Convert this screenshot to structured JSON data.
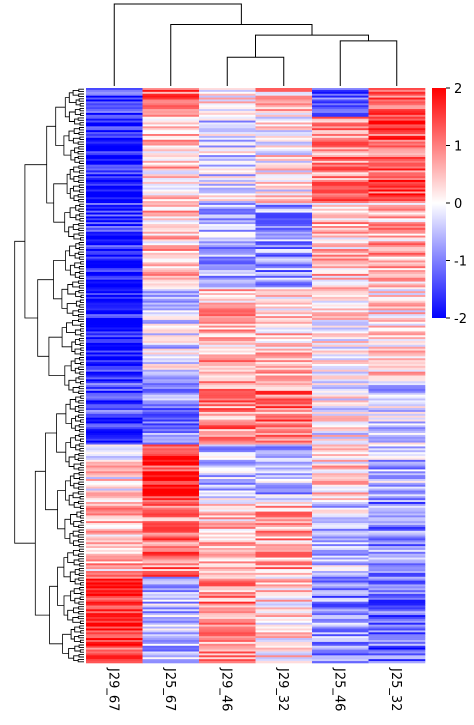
{
  "chart_data": {
    "type": "heatmap",
    "title": "",
    "columns": [
      "J29_67",
      "J25_67",
      "J29_46",
      "J29_32",
      "J25_46",
      "J25_32"
    ],
    "colorbar": {
      "min": -2,
      "max": 2,
      "ticks": [
        "2",
        "1",
        "0",
        "-1",
        "-2"
      ],
      "colors": {
        "low": "#0000ff",
        "mid": "#ffffff",
        "high": "#ff0000"
      }
    },
    "column_dendrogram": [
      {
        "merge": [
          "J29_46",
          "J29_32"
        ],
        "height": 0.35
      },
      {
        "merge": [
          "J25_46",
          "J25_32"
        ],
        "height": 0.55
      },
      {
        "merge": [
          "J29_46+J29_32",
          "J25_46+J25_32"
        ],
        "height": 0.62
      },
      {
        "merge": [
          "J25_67",
          "J29_46+J29_32+J25_46+J25_32"
        ],
        "height": 0.75
      },
      {
        "merge": [
          "J29_67",
          "rest"
        ],
        "height": 1.0
      }
    ],
    "row_profile_segments": [
      {
        "rows": "0-5%",
        "values": [
          -1.6,
          1.2,
          0.2,
          0.5,
          -1.2,
          1.4
        ]
      },
      {
        "rows": "5-20%",
        "values": [
          -1.8,
          0.4,
          -0.3,
          0.1,
          0.9,
          1.3
        ]
      },
      {
        "rows": "20-35%",
        "values": [
          -1.7,
          0.5,
          -0.6,
          -0.8,
          0.5,
          0.6
        ]
      },
      {
        "rows": "35-50%",
        "values": [
          -1.8,
          -0.3,
          0.6,
          0.4,
          0.1,
          0.3
        ]
      },
      {
        "rows": "50-62%",
        "values": [
          -1.5,
          -0.9,
          0.9,
          1.0,
          0.0,
          -0.4
        ]
      },
      {
        "rows": "62-72%",
        "values": [
          0.2,
          1.6,
          -0.4,
          -0.6,
          0.3,
          -0.6
        ]
      },
      {
        "rows": "72-85%",
        "values": [
          0.6,
          1.0,
          0.4,
          0.7,
          -0.4,
          -0.9
        ]
      },
      {
        "rows": "85-100%",
        "values": [
          1.5,
          -0.5,
          0.9,
          0.3,
          -0.9,
          -1.2
        ]
      }
    ]
  }
}
